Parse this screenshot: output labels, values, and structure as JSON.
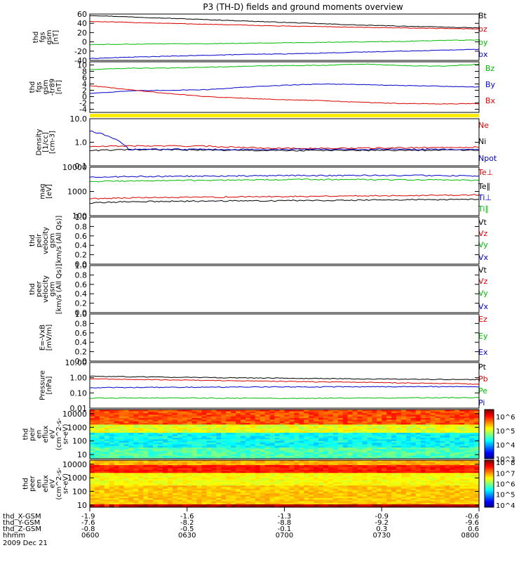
{
  "title": "P3 (TH-D) fields and ground moments overview",
  "chart_data": [
    {
      "type": "line",
      "panel": "fgs-gsm",
      "ylabel": [
        "thd",
        "fgs",
        "gsm",
        "[nT]"
      ],
      "ylim": [
        -40,
        60
      ],
      "ticks": [
        "-40",
        "-20",
        "0",
        "20",
        "40",
        "60"
      ],
      "tick_values": [
        -40,
        -20,
        0,
        20,
        40,
        60
      ],
      "series": [
        {
          "name": "Bt",
          "color": "#000000",
          "values": [
            57,
            54,
            51,
            48,
            45,
            42,
            39,
            36,
            34,
            32,
            30
          ]
        },
        {
          "name": "bz",
          "color": "#dd0000",
          "values": [
            44,
            42,
            40,
            38,
            36,
            34,
            33,
            31,
            30,
            29,
            28
          ]
        },
        {
          "name": "by",
          "color": "#00bb00",
          "values": [
            -6,
            -5,
            -4,
            -4,
            -3,
            -2,
            -1,
            0,
            1,
            3,
            4
          ]
        },
        {
          "name": "bx",
          "color": "#0000cc",
          "values": [
            -36,
            -33,
            -31,
            -29,
            -27,
            -26,
            -24,
            -22,
            -20,
            -18,
            -16
          ]
        }
      ]
    },
    {
      "type": "line",
      "panel": "fgs-gsm-detrended",
      "ylabel": [
        "thd",
        "fgs",
        "gsm",
        "-tr89",
        "[nT]"
      ],
      "ylim": [
        -5,
        11
      ],
      "ticks": [
        "-4",
        "-2",
        "0",
        "2",
        "4",
        "6",
        "8",
        "10"
      ],
      "tick_values": [
        -4,
        -2,
        0,
        2,
        4,
        6,
        8,
        10
      ],
      "series": [
        {
          "name": "Bz",
          "color": "#00bb00",
          "values": [
            8.5,
            9.0,
            9.0,
            9.3,
            9.6,
            9.8,
            9.9,
            10.3,
            9.8,
            9.6,
            10.2
          ]
        },
        {
          "name": "By",
          "color": "#0000cc",
          "values": [
            1.0,
            1.8,
            2.0,
            2.2,
            3.0,
            3.6,
            4.0,
            3.8,
            3.5,
            3.3,
            3.0
          ]
        },
        {
          "name": "Bx",
          "color": "#dd0000",
          "values": [
            3.5,
            2.2,
            1.0,
            0.0,
            -0.5,
            -1.0,
            -1.3,
            -1.8,
            -2.2,
            -2.3,
            -2.2
          ]
        }
      ]
    },
    {
      "type": "line",
      "panel": "density",
      "ylabel": [
        "Density",
        "[1/cc]",
        "[cm-3]"
      ],
      "yscale": "log",
      "ylim": [
        0.1,
        10
      ],
      "ticks": [
        "0.1",
        "1.0",
        "10.0"
      ],
      "tick_values": [
        0.1,
        1,
        10
      ],
      "series": [
        {
          "name": "Ne",
          "color": "#dd0000",
          "values": [
            0.65,
            0.7,
            0.7,
            0.68,
            0.6,
            0.55,
            0.55,
            0.56,
            0.58,
            0.6,
            0.62
          ]
        },
        {
          "name": "Ni",
          "color": "#000000",
          "values": [
            0.45,
            0.48,
            0.48,
            0.47,
            0.45,
            0.44,
            0.45,
            0.45,
            0.45,
            0.46,
            0.47
          ]
        },
        {
          "name": "Npot",
          "color": "#0000cc",
          "values": [
            3.0,
            0.5,
            0.5,
            0.5,
            0.5,
            0.5,
            0.5,
            0.5,
            0.5,
            0.5,
            0.5
          ]
        }
      ]
    },
    {
      "type": "line",
      "panel": "temperature",
      "ylabel": [
        "mag",
        "[eV]"
      ],
      "yscale": "log",
      "ylim": [
        100,
        10000
      ],
      "ticks": [
        "100",
        "1000",
        "10000"
      ],
      "tick_values": [
        100,
        1000,
        10000
      ],
      "series": [
        {
          "name": "Te⊥",
          "color": "#dd0000",
          "values": [
            500,
            550,
            560,
            580,
            600,
            620,
            640,
            660,
            680,
            700,
            720
          ]
        },
        {
          "name": "Te∥",
          "color": "#000000",
          "values": [
            330,
            380,
            390,
            400,
            410,
            420,
            430,
            440,
            450,
            460,
            470
          ]
        },
        {
          "name": "Ti⊥",
          "color": "#0000cc",
          "values": [
            3900,
            4100,
            4200,
            4300,
            4400,
            4500,
            4500,
            4600,
            4600,
            4500,
            4400
          ]
        },
        {
          "name": "Ti∥",
          "color": "#00bb00",
          "values": [
            2600,
            2700,
            2800,
            2900,
            3000,
            3100,
            3100,
            3100,
            3000,
            3000,
            2900
          ]
        }
      ]
    },
    {
      "type": "line",
      "panel": "peir-velocity",
      "ylabel": [
        "thd",
        "peir",
        "velocity",
        "gsm",
        "[km/s (All Qs)]"
      ],
      "ylim": [
        0,
        1
      ],
      "ticks": [
        "0.0",
        "0.2",
        "0.4",
        "0.6",
        "0.8",
        "1.0"
      ],
      "tick_values": [
        0,
        0.2,
        0.4,
        0.6,
        0.8,
        1.0
      ],
      "series": [
        {
          "name": "Vt",
          "color": "#000000",
          "values": []
        },
        {
          "name": "Vz",
          "color": "#dd0000",
          "values": []
        },
        {
          "name": "Vy",
          "color": "#00bb00",
          "values": []
        },
        {
          "name": "Vx",
          "color": "#0000cc",
          "values": []
        }
      ]
    },
    {
      "type": "line",
      "panel": "peer-velocity",
      "ylabel": [
        "thd",
        "peer",
        "velocity",
        "gsm",
        "[km/s (All Qs)]"
      ],
      "ylim": [
        0,
        1
      ],
      "ticks": [
        "0.0",
        "0.2",
        "0.4",
        "0.6",
        "0.8",
        "1.0"
      ],
      "tick_values": [
        0,
        0.2,
        0.4,
        0.6,
        0.8,
        1.0
      ],
      "series": [
        {
          "name": "Vt",
          "color": "#000000",
          "values": []
        },
        {
          "name": "Vz",
          "color": "#dd0000",
          "values": []
        },
        {
          "name": "Vy",
          "color": "#00bb00",
          "values": []
        },
        {
          "name": "Vx",
          "color": "#0000cc",
          "values": []
        }
      ]
    },
    {
      "type": "line",
      "panel": "efield",
      "ylabel": [
        "E=-VxB",
        "[mV/m]"
      ],
      "ylim": [
        0,
        1
      ],
      "ticks": [
        "0.0",
        "0.2",
        "0.4",
        "0.6",
        "0.8",
        "1.0"
      ],
      "tick_values": [
        0,
        0.2,
        0.4,
        0.6,
        0.8,
        1.0
      ],
      "series": [
        {
          "name": "Ez",
          "color": "#dd0000",
          "values": []
        },
        {
          "name": "Ey",
          "color": "#00bb00",
          "values": []
        },
        {
          "name": "Ex",
          "color": "#0000cc",
          "values": []
        }
      ]
    },
    {
      "type": "line",
      "panel": "pressure",
      "ylabel": [
        "Pressure",
        "[nPa]"
      ],
      "yscale": "log",
      "ylim": [
        0.01,
        10
      ],
      "ticks": [
        "0.01",
        "0.10",
        "1.00",
        "10.00"
      ],
      "tick_values": [
        0.01,
        0.1,
        1,
        10
      ],
      "series": [
        {
          "name": "Pt",
          "color": "#000000",
          "values": [
            1.25,
            1.15,
            1.08,
            1.02,
            0.97,
            0.92,
            0.88,
            0.84,
            0.8,
            0.77,
            0.75
          ]
        },
        {
          "name": "Pb",
          "color": "#dd0000",
          "values": [
            0.85,
            0.78,
            0.72,
            0.67,
            0.62,
            0.57,
            0.53,
            0.5,
            0.46,
            0.42,
            0.38
          ]
        },
        {
          "name": "Pe",
          "color": "#00bb00",
          "values": [
            0.045,
            0.047,
            0.047,
            0.046,
            0.045,
            0.044,
            0.045,
            0.046,
            0.047,
            0.048,
            0.049
          ]
        },
        {
          "name": "Pi",
          "color": "#0000cc",
          "values": [
            0.22,
            0.23,
            0.235,
            0.24,
            0.245,
            0.25,
            0.25,
            0.255,
            0.26,
            0.26,
            0.25
          ]
        }
      ]
    },
    {
      "type": "heatmap",
      "panel": "peir-spectrogram",
      "ylabel": [
        "thd",
        "peir",
        "en",
        "eflux",
        "eV",
        "(cm^2-s-",
        "sr-eV)"
      ],
      "yscale": "log",
      "ylim": [
        5,
        20000
      ],
      "ticks": [
        "10",
        "100",
        "1000",
        "10000"
      ],
      "tick_values": [
        10,
        100,
        1000,
        10000
      ],
      "colorbar": {
        "ticks": [
          "10^3",
          "10^4",
          "10^5",
          "10^6"
        ],
        "range": [
          3,
          6.5
        ]
      }
    },
    {
      "type": "heatmap",
      "panel": "peer-spectrogram",
      "ylabel": [
        "thd",
        "peer",
        "en",
        "eflux",
        "eV",
        "(cm^2-s-",
        "sr-eV)"
      ],
      "yscale": "log",
      "ylim": [
        7,
        20000
      ],
      "ticks": [
        "10",
        "100",
        "1000",
        "10000"
      ],
      "tick_values": [
        10,
        100,
        1000,
        10000
      ],
      "colorbar": {
        "ticks": [
          "10^4",
          "10^5",
          "10^6",
          "10^7",
          "10^8"
        ],
        "range": [
          3.8,
          8.2
        ]
      }
    }
  ],
  "xaxis": {
    "rows": [
      {
        "label": "thd_X-GSM",
        "values": [
          "-1.9",
          "-1.6",
          "-1.3",
          "-0.9",
          "-0.6"
        ]
      },
      {
        "label": "thd_Y-GSM",
        "values": [
          "-7.6",
          "-8.2",
          "-8.8",
          "-9.2",
          "-9.6"
        ]
      },
      {
        "label": "thd_Z-GSM",
        "values": [
          "-0.8",
          "-0.5",
          "-0.1",
          "0.3",
          "0.6"
        ]
      },
      {
        "label": "hhmm",
        "values": [
          "0600",
          "0630",
          "0700",
          "0730",
          "0800"
        ]
      }
    ],
    "date": "2009 Dec 21"
  }
}
